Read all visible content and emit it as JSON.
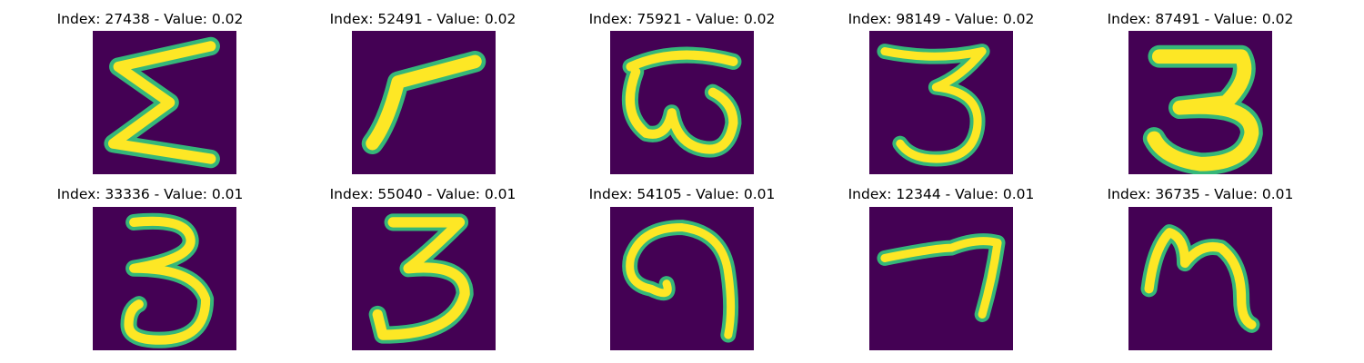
{
  "colors": {
    "background": "#440154",
    "stroke_outer": "#35b779",
    "stroke_inner": "#fde725"
  },
  "grid": [
    {
      "title": "Index: 27438 - Value: 0.02",
      "glyph": "sigma-like"
    },
    {
      "title": "Index: 52491 - Value: 0.02",
      "glyph": "seven-like"
    },
    {
      "title": "Index: 75921 - Value: 0.02",
      "glyph": "omega-like"
    },
    {
      "title": "Index: 98149 - Value: 0.02",
      "glyph": "three"
    },
    {
      "title": "Index: 87491 - Value: 0.02",
      "glyph": "three-bold"
    },
    {
      "title": "Index: 33336 - Value: 0.01",
      "glyph": "three"
    },
    {
      "title": "Index: 55040 - Value: 0.01",
      "glyph": "three"
    },
    {
      "title": "Index: 54105 - Value: 0.01",
      "glyph": "hook"
    },
    {
      "title": "Index: 12344 - Value: 0.01",
      "glyph": "seven-like"
    },
    {
      "title": "Index: 36735 - Value: 0.01",
      "glyph": "m-like"
    }
  ]
}
